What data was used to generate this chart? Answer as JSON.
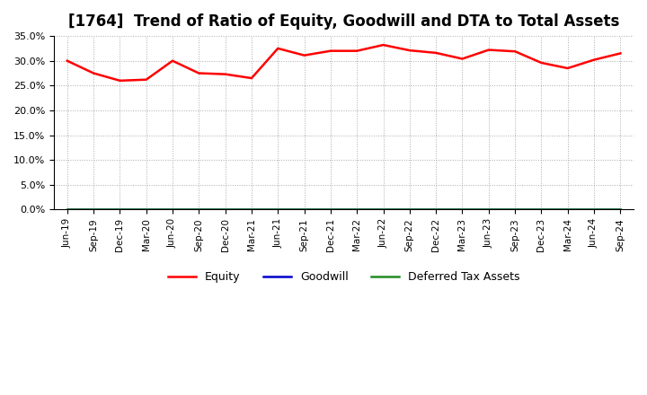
{
  "title": "[1764]  Trend of Ratio of Equity, Goodwill and DTA to Total Assets",
  "x_labels": [
    "Jun-19",
    "Sep-19",
    "Dec-19",
    "Mar-20",
    "Jun-20",
    "Sep-20",
    "Dec-20",
    "Mar-21",
    "Jun-21",
    "Sep-21",
    "Dec-21",
    "Mar-22",
    "Jun-22",
    "Sep-22",
    "Dec-22",
    "Mar-23",
    "Jun-23",
    "Sep-23",
    "Dec-23",
    "Mar-24",
    "Jun-24",
    "Sep-24"
  ],
  "equity": [
    0.3,
    0.275,
    0.26,
    0.262,
    0.3,
    0.275,
    0.273,
    0.265,
    0.325,
    0.311,
    0.32,
    0.32,
    0.332,
    0.321,
    0.316,
    0.304,
    0.322,
    0.319,
    0.296,
    0.285,
    0.302,
    0.315
  ],
  "goodwill": [
    0.0,
    0.0,
    0.0,
    0.0,
    0.0,
    0.0,
    0.0,
    0.0,
    0.0,
    0.0,
    0.0,
    0.0,
    0.0,
    0.0,
    0.0,
    0.0,
    0.0,
    0.0,
    0.0,
    0.0,
    0.0,
    0.0
  ],
  "dta": [
    0.0,
    0.0,
    0.0,
    0.0,
    0.0,
    0.0,
    0.0,
    0.0,
    0.0,
    0.0,
    0.0,
    0.0,
    0.0,
    0.0,
    0.0,
    0.0,
    0.0,
    0.0,
    0.0,
    0.0,
    0.0,
    0.0
  ],
  "equity_color": "#ff0000",
  "goodwill_color": "#0000cd",
  "dta_color": "#228b22",
  "ylim": [
    0.0,
    0.35
  ],
  "yticks": [
    0.0,
    0.05,
    0.1,
    0.15,
    0.2,
    0.25,
    0.3,
    0.35
  ],
  "background_color": "#ffffff",
  "plot_bg_color": "#ffffff",
  "grid_color": "#aaaaaa",
  "title_fontsize": 12,
  "legend_labels": [
    "Equity",
    "Goodwill",
    "Deferred Tax Assets"
  ],
  "linewidth": 1.8
}
